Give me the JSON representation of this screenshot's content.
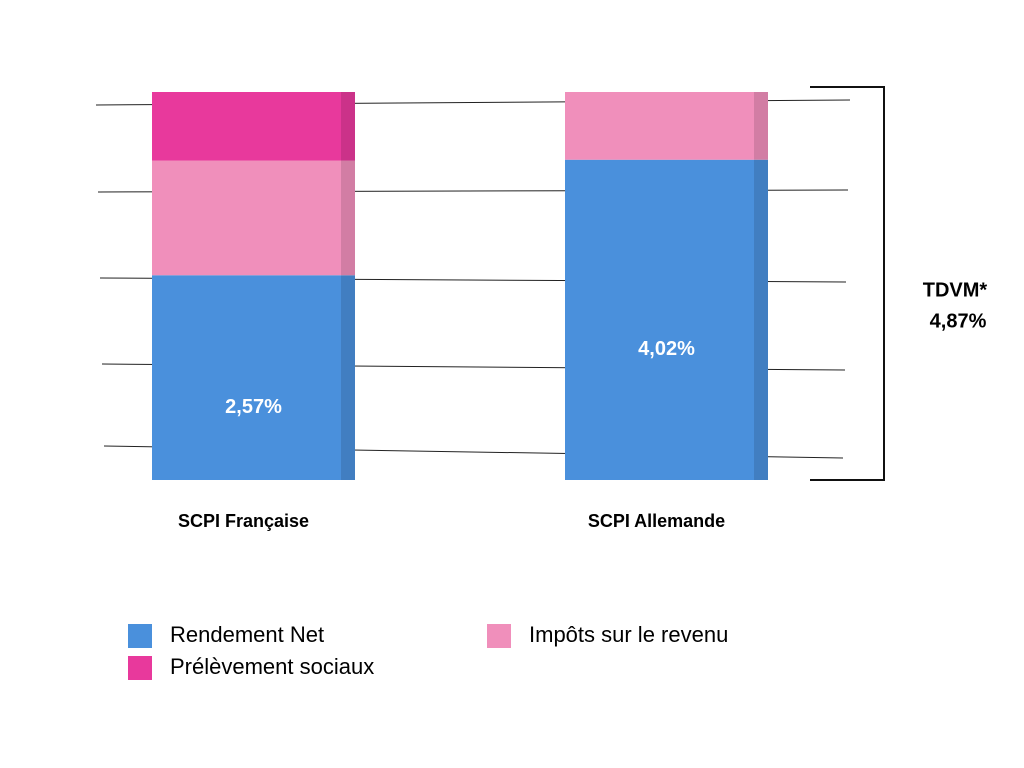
{
  "chart_data": {
    "type": "stacked-bar",
    "categories": [
      "SCPI Française",
      "SCPI Allemande"
    ],
    "series": [
      {
        "name": "Rendement Net",
        "color": "#4a90dc",
        "values": [
          2.57,
          4.02
        ],
        "value_labels": [
          "2,57%",
          "4,02%"
        ]
      },
      {
        "name": "Impôts sur le revenu",
        "color": "#f08fbb",
        "values": [
          1.44,
          0.85
        ]
      },
      {
        "name": "Prélèvement sociaux",
        "color": "#e8399c",
        "values": [
          0.86,
          0
        ]
      }
    ],
    "ylim": [
      0,
      4.87
    ],
    "annotations": [
      "TDVM*",
      "4,87%"
    ]
  }
}
